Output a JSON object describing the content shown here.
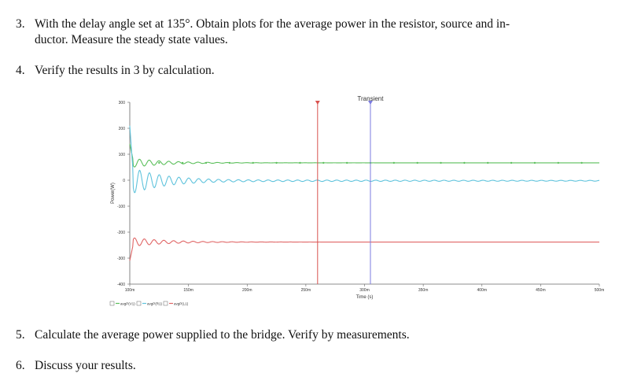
{
  "questions": [
    {
      "num": "3.",
      "lines": [
        "With the delay angle set at 135°. Obtain plots for the average power in the resistor, source and in-",
        "ductor. Measure the steady state values."
      ]
    },
    {
      "num": "4.",
      "lines": [
        "Verify the results in 3 by calculation."
      ]
    },
    {
      "num": "5.",
      "lines": [
        "Calculate the average power supplied to the bridge. Verify by measurements."
      ]
    },
    {
      "num": "6.",
      "lines": [
        "Discuss your results."
      ]
    }
  ],
  "chart_data": {
    "type": "line",
    "title": "Transient",
    "xlabel": "Time (s)",
    "ylabel": "Power(W)",
    "xlim": [
      0.1,
      0.5
    ],
    "ylim": [
      -400,
      300
    ],
    "x_ticks": [
      0.1,
      0.15,
      0.2,
      0.25,
      0.3,
      0.35,
      0.4,
      0.45,
      0.5
    ],
    "x_tick_labels": [
      "100m",
      "150m",
      "200m",
      "250m",
      "300m",
      "350m",
      "400m",
      "450m",
      "500m"
    ],
    "y_ticks": [
      300,
      200,
      100,
      0,
      -100,
      -200,
      -300,
      -400
    ],
    "y_tick_labels": [
      "300",
      "200",
      "100",
      "0",
      "-100",
      "-200",
      "-300",
      "-400"
    ],
    "grid": false,
    "legend_position": "bottom-left",
    "series": [
      {
        "name": "avgP(V1)",
        "color": "#5bbf5b",
        "steady": 67,
        "start": 140,
        "markers": true
      },
      {
        "name": "avgP(R1)",
        "color": "#5fc3dc",
        "steady": -2,
        "start": 210,
        "markers": false
      },
      {
        "name": "avgP(L1)",
        "color": "#e06666",
        "steady": -238,
        "start": -310,
        "markers": false
      }
    ],
    "cursors": [
      {
        "name": "cursor-1",
        "x": 0.26,
        "color": "#d9534f"
      },
      {
        "name": "cursor-2",
        "x": 0.305,
        "color": "#7b7be0"
      }
    ]
  }
}
